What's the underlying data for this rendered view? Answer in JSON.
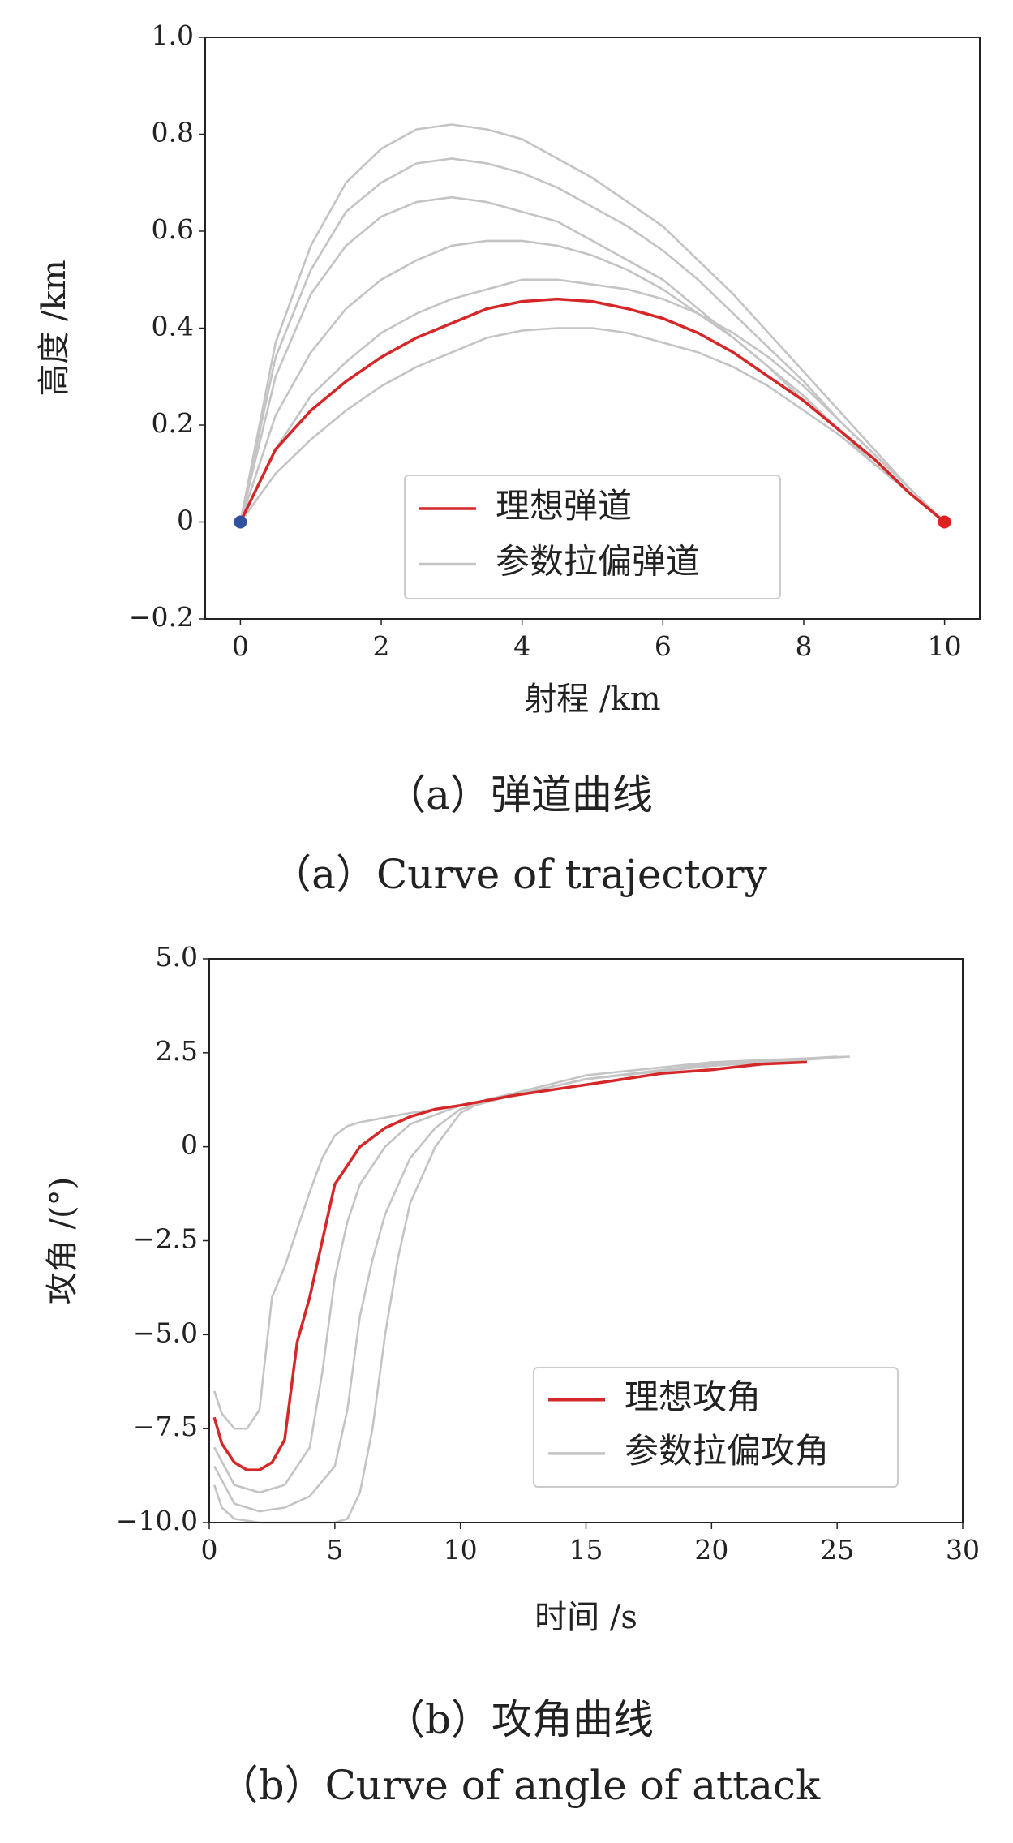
{
  "chart_data": [
    {
      "type": "line",
      "xlabel": "射程 /km",
      "ylabel": "高度 /km",
      "xlim": [
        -0.5,
        10.5
      ],
      "xticks": [
        0,
        2,
        4,
        6,
        8,
        10
      ],
      "ylim": [
        -0.2,
        1.0
      ],
      "yticks": [
        {
          "value": -0.2,
          "label": "−0.2"
        },
        0,
        0.2,
        0.4,
        0.6,
        0.8,
        {
          "value": 1.0,
          "label": "1.0"
        }
      ],
      "x": [
        0,
        0.5,
        1,
        1.5,
        2,
        2.5,
        3,
        3.5,
        4,
        4.5,
        5,
        5.5,
        6,
        6.5,
        7,
        7.5,
        8,
        8.5,
        9,
        9.5,
        10
      ],
      "series": [
        {
          "name": "参数拉偏弹道",
          "color": "#c4c4c4",
          "values": [
            [
              0,
              0.37,
              0.57,
              0.7,
              0.77,
              0.81,
              0.82,
              0.81,
              0.79,
              0.75,
              0.71,
              0.66,
              0.61,
              0.54,
              0.47,
              0.39,
              0.31,
              0.23,
              0.15,
              0.07,
              0
            ],
            [
              0,
              0.34,
              0.52,
              0.64,
              0.7,
              0.74,
              0.75,
              0.74,
              0.72,
              0.69,
              0.65,
              0.61,
              0.56,
              0.5,
              0.43,
              0.36,
              0.29,
              0.21,
              0.14,
              0.07,
              0
            ],
            [
              0,
              0.3,
              0.47,
              0.57,
              0.63,
              0.66,
              0.67,
              0.66,
              0.64,
              0.62,
              0.58,
              0.54,
              0.5,
              0.44,
              0.38,
              0.32,
              0.25,
              0.19,
              0.12,
              0.06,
              0
            ],
            [
              0,
              0.22,
              0.35,
              0.44,
              0.5,
              0.54,
              0.57,
              0.58,
              0.58,
              0.57,
              0.55,
              0.52,
              0.48,
              0.43,
              0.38,
              0.32,
              0.26,
              0.19,
              0.12,
              0.06,
              0
            ],
            [
              0,
              0.15,
              0.26,
              0.33,
              0.39,
              0.43,
              0.46,
              0.48,
              0.5,
              0.5,
              0.49,
              0.48,
              0.46,
              0.43,
              0.39,
              0.34,
              0.28,
              0.21,
              0.14,
              0.07,
              0
            ],
            [
              0,
              0.1,
              0.17,
              0.23,
              0.28,
              0.32,
              0.35,
              0.38,
              0.395,
              0.4,
              0.4,
              0.39,
              0.37,
              0.35,
              0.32,
              0.28,
              0.23,
              0.18,
              0.12,
              0.06,
              0
            ]
          ]
        },
        {
          "name": "理想弹道",
          "color": "#d62728",
          "values": [
            0,
            0.15,
            0.23,
            0.29,
            0.34,
            0.38,
            0.41,
            0.44,
            0.455,
            0.46,
            0.455,
            0.44,
            0.42,
            0.39,
            0.35,
            0.3,
            0.25,
            0.19,
            0.13,
            0.06,
            0
          ]
        }
      ],
      "legend_order": [
        1,
        0
      ],
      "markers": [
        {
          "x": 0,
          "y": 0,
          "color": "#3050a0"
        },
        {
          "x": 10,
          "y": 0,
          "color": "#e02020"
        }
      ],
      "caption_zh": "（a）弹道曲线",
      "caption_en": "（a）Curve of trajectory"
    },
    {
      "type": "line",
      "xlabel": "时间 /s",
      "ylabel": "攻角 /(°)",
      "xlim": [
        0,
        30
      ],
      "xticks": [
        0,
        5,
        10,
        15,
        20,
        25,
        30
      ],
      "ylim": [
        -10,
        5
      ],
      "yticks": [
        {
          "value": -10,
          "label": "−10.0"
        },
        {
          "value": -7.5,
          "label": "−7.5"
        },
        {
          "value": -5,
          "label": "−5.0"
        },
        {
          "value": -2.5,
          "label": "−2.5"
        },
        0,
        2.5,
        {
          "value": 5,
          "label": "5.0"
        }
      ],
      "series": [
        {
          "name": "参数拉偏攻角",
          "color": "#c4c4c4",
          "x": [
            [
              0.2,
              0.5,
              1,
              1.5,
              2,
              2.5,
              3,
              3.5,
              4,
              4.5,
              5,
              5.5,
              6,
              8,
              10,
              12,
              15,
              20,
              25.5
            ],
            [
              0.2,
              0.5,
              1,
              2,
              3,
              4,
              5,
              5.5,
              6,
              6.5,
              7,
              7.5,
              8,
              9,
              10,
              11,
              12,
              15,
              20,
              25.5
            ],
            [
              0.2,
              1,
              2,
              3,
              4,
              4.5,
              5,
              5.5,
              6,
              7,
              8,
              10,
              12,
              15,
              20,
              24.5
            ],
            [
              0.2,
              1,
              2,
              3,
              4,
              5,
              5.5,
              6,
              6.5,
              7,
              8,
              9,
              10,
              12,
              15,
              20,
              25
            ]
          ],
          "values": [
            [
              -6.5,
              -7.1,
              -7.5,
              -7.5,
              -7.0,
              -4.0,
              -3.2,
              -2.2,
              -1.2,
              -0.3,
              0.3,
              0.55,
              0.65,
              0.9,
              1.1,
              1.35,
              1.8,
              2.2,
              2.4
            ],
            [
              -9.0,
              -9.6,
              -9.9,
              -10,
              -10,
              -10,
              -10,
              -9.9,
              -9.2,
              -7.5,
              -5.0,
              -3.0,
              -1.5,
              0,
              0.9,
              1.25,
              1.4,
              1.9,
              2.25,
              2.4
            ],
            [
              -8.0,
              -9.0,
              -9.2,
              -9.0,
              -8.0,
              -6.0,
              -3.5,
              -2.0,
              -1.0,
              0,
              0.6,
              1.1,
              1.35,
              1.8,
              2.15,
              2.35
            ],
            [
              -8.5,
              -9.5,
              -9.7,
              -9.6,
              -9.3,
              -8.5,
              -7.0,
              -4.5,
              -3.0,
              -1.8,
              -0.3,
              0.5,
              1.0,
              1.35,
              1.8,
              2.2,
              2.4
            ]
          ]
        },
        {
          "name": "理想攻角",
          "color": "#d62728",
          "x": [
            0.2,
            0.5,
            1,
            1.5,
            2,
            2.5,
            3,
            3.5,
            4,
            4.5,
            5,
            6,
            7,
            8,
            9,
            10,
            12,
            14,
            16,
            18,
            20,
            22,
            23.8
          ],
          "values": [
            -7.2,
            -7.9,
            -8.4,
            -8.6,
            -8.6,
            -8.4,
            -7.8,
            -5.2,
            -4.0,
            -2.5,
            -1.0,
            0.0,
            0.5,
            0.8,
            1.0,
            1.1,
            1.35,
            1.55,
            1.75,
            1.95,
            2.05,
            2.2,
            2.25
          ]
        }
      ],
      "legend_order": [
        1,
        0
      ],
      "caption_zh": "（b）攻角曲线",
      "caption_en": "（b）Curve of angle of attack"
    }
  ]
}
